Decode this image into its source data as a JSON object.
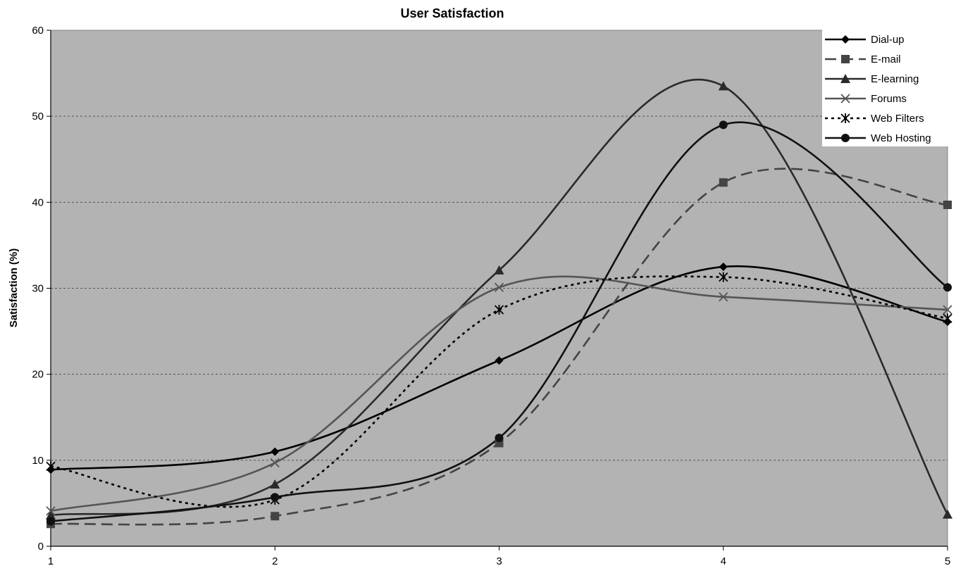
{
  "chart_data": {
    "type": "line",
    "title": "User Satisfaction",
    "xlabel": "",
    "ylabel": "Satisfaction (%)",
    "x": [
      1,
      2,
      3,
      4,
      5
    ],
    "xlim": [
      1,
      5
    ],
    "ylim": [
      0,
      60
    ],
    "yticks": [
      0,
      10,
      20,
      30,
      40,
      50,
      60
    ],
    "xticks": [
      1,
      2,
      3,
      4,
      5
    ],
    "grid": "horizontal dashed",
    "smoothed": true,
    "legend_position": "top-right",
    "plot_background": "#b3b3b3",
    "series": [
      {
        "name": "Dial-up",
        "values": [
          8.9,
          11.0,
          21.6,
          32.5,
          26.1
        ],
        "color": "#000000",
        "dash": "solid",
        "marker": "diamond"
      },
      {
        "name": "E-mail",
        "values": [
          2.6,
          3.5,
          12.0,
          42.3,
          39.7
        ],
        "color": "#444444",
        "dash": "dashed",
        "marker": "square"
      },
      {
        "name": "E-learning",
        "values": [
          3.6,
          7.2,
          32.1,
          53.5,
          3.7
        ],
        "color": "#2a2a2a",
        "dash": "solid",
        "marker": "triangle"
      },
      {
        "name": "Forums",
        "values": [
          4.1,
          9.7,
          30.1,
          29.0,
          27.5
        ],
        "color": "#555555",
        "dash": "solid",
        "marker": "x"
      },
      {
        "name": "Web Filters",
        "values": [
          9.3,
          5.4,
          27.5,
          31.3,
          26.5
        ],
        "color": "#000000",
        "dash": "dotted",
        "marker": "asterisk"
      },
      {
        "name": "Web Hosting",
        "values": [
          2.9,
          5.7,
          12.6,
          49.0,
          30.1
        ],
        "color": "#111111",
        "dash": "solid",
        "marker": "circle"
      }
    ]
  }
}
